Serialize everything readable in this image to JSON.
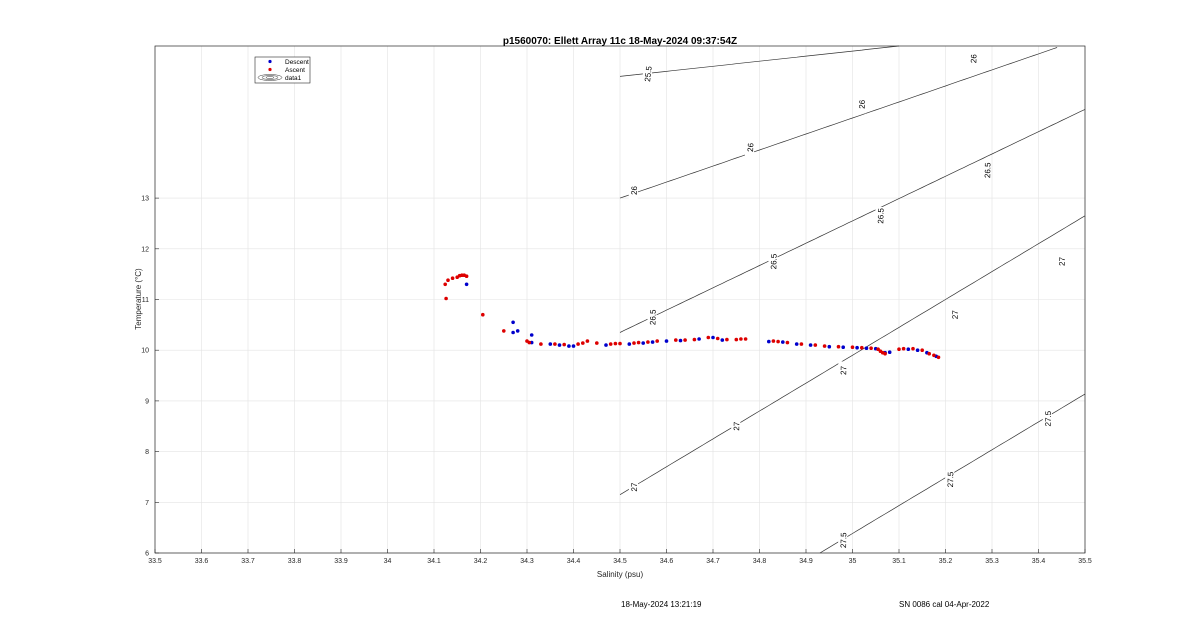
{
  "chart_data": {
    "type": "scatter",
    "title": "p1560070: Ellett Array 11c 18-May-2024 09:37:54Z",
    "xlabel": "Salinity (psu)",
    "ylabel": "Temperature (°C)",
    "xlim": [
      33.5,
      35.5
    ],
    "ylim": [
      6,
      16
    ],
    "xticks": [
      33.5,
      33.6,
      33.7,
      33.8,
      33.9,
      34,
      34.1,
      34.2,
      34.3,
      34.4,
      34.5,
      34.6,
      34.7,
      34.8,
      34.9,
      35,
      35.1,
      35.2,
      35.3,
      35.4,
      35.5
    ],
    "yticks": [
      6,
      7,
      8,
      9,
      10,
      11,
      12,
      13
    ],
    "grid": true,
    "legend_position": "top-left",
    "colors": {
      "descent": "#0000cc",
      "ascent": "#dd0000",
      "contour": "#333333",
      "grid": "#e3e3e3",
      "axis": "#262626"
    },
    "legend": [
      {
        "name": "Descent",
        "marker": "dot",
        "color": "#0000cc"
      },
      {
        "name": "Ascent",
        "marker": "dot",
        "color": "#dd0000"
      },
      {
        "name": "data1",
        "marker": "contour-ellipse",
        "color": "#333333"
      }
    ],
    "series": [
      {
        "name": "Descent",
        "points": [
          [
            34.17,
            11.3
          ],
          [
            34.27,
            10.55
          ],
          [
            34.27,
            10.35
          ],
          [
            34.28,
            10.38
          ],
          [
            34.31,
            10.3
          ],
          [
            34.31,
            10.15
          ],
          [
            34.35,
            10.12
          ],
          [
            34.37,
            10.1
          ],
          [
            34.39,
            10.08
          ],
          [
            34.4,
            10.08
          ],
          [
            34.47,
            10.1
          ],
          [
            34.52,
            10.12
          ],
          [
            34.55,
            10.14
          ],
          [
            34.57,
            10.16
          ],
          [
            34.6,
            10.18
          ],
          [
            34.63,
            10.19
          ],
          [
            34.67,
            10.22
          ],
          [
            34.7,
            10.25
          ],
          [
            34.72,
            10.2
          ],
          [
            34.82,
            10.17
          ],
          [
            34.85,
            10.16
          ],
          [
            34.88,
            10.12
          ],
          [
            34.91,
            10.1
          ],
          [
            34.95,
            10.07
          ],
          [
            34.98,
            10.06
          ],
          [
            35.01,
            10.05
          ],
          [
            35.03,
            10.04
          ],
          [
            35.05,
            10.03
          ],
          [
            35.07,
            9.95
          ],
          [
            35.08,
            9.96
          ],
          [
            35.12,
            10.02
          ],
          [
            35.14,
            10.0
          ],
          [
            35.16,
            9.95
          ],
          [
            35.18,
            9.88
          ]
        ]
      },
      {
        "name": "Ascent",
        "points": [
          [
            34.124,
            11.3
          ],
          [
            34.126,
            11.02
          ],
          [
            34.13,
            11.38
          ],
          [
            34.14,
            11.42
          ],
          [
            34.15,
            11.44
          ],
          [
            34.155,
            11.47
          ],
          [
            34.16,
            11.48
          ],
          [
            34.165,
            11.48
          ],
          [
            34.17,
            11.46
          ],
          [
            34.205,
            10.7
          ],
          [
            34.25,
            10.38
          ],
          [
            34.3,
            10.18
          ],
          [
            34.305,
            10.15
          ],
          [
            34.33,
            10.12
          ],
          [
            34.36,
            10.12
          ],
          [
            34.38,
            10.11
          ],
          [
            34.41,
            10.12
          ],
          [
            34.42,
            10.14
          ],
          [
            34.43,
            10.18
          ],
          [
            34.45,
            10.14
          ],
          [
            34.48,
            10.12
          ],
          [
            34.49,
            10.13
          ],
          [
            34.5,
            10.13
          ],
          [
            34.53,
            10.14
          ],
          [
            34.54,
            10.15
          ],
          [
            34.56,
            10.16
          ],
          [
            34.58,
            10.18
          ],
          [
            34.62,
            10.2
          ],
          [
            34.64,
            10.2
          ],
          [
            34.66,
            10.21
          ],
          [
            34.69,
            10.25
          ],
          [
            34.71,
            10.23
          ],
          [
            34.73,
            10.21
          ],
          [
            34.75,
            10.21
          ],
          [
            34.76,
            10.22
          ],
          [
            34.77,
            10.22
          ],
          [
            34.83,
            10.18
          ],
          [
            34.84,
            10.17
          ],
          [
            34.86,
            10.15
          ],
          [
            34.89,
            10.12
          ],
          [
            34.92,
            10.1
          ],
          [
            34.94,
            10.08
          ],
          [
            34.97,
            10.07
          ],
          [
            35.0,
            10.06
          ],
          [
            35.02,
            10.05
          ],
          [
            35.04,
            10.04
          ],
          [
            35.055,
            10.02
          ],
          [
            35.06,
            9.98
          ],
          [
            35.065,
            9.95
          ],
          [
            35.07,
            9.93
          ],
          [
            35.1,
            10.02
          ],
          [
            35.11,
            10.03
          ],
          [
            35.13,
            10.03
          ],
          [
            35.15,
            10.0
          ],
          [
            35.165,
            9.93
          ],
          [
            35.175,
            9.9
          ],
          [
            35.185,
            9.86
          ]
        ]
      }
    ],
    "isopycnals": [
      {
        "level": "25.5",
        "s0": 34.5,
        "t0": 15.4,
        "slope": 1.0,
        "labels": [
          {
            "text": "25.5",
            "s": 34.56,
            "t": 15.45
          }
        ]
      },
      {
        "level": "26",
        "s0": 34.5,
        "t0": 13.0,
        "slope": 3.16,
        "labels": [
          {
            "text": "26",
            "s": 34.53,
            "t": 13.15
          },
          {
            "text": "26",
            "s": 34.78,
            "t": 14.0
          },
          {
            "text": "26",
            "s": 35.02,
            "t": 14.85
          },
          {
            "text": "26",
            "s": 35.26,
            "t": 15.75
          }
        ]
      },
      {
        "level": "26.5",
        "s0": 34.5,
        "t0": 10.35,
        "slope": 4.4,
        "labels": [
          {
            "text": "26.5",
            "s": 34.57,
            "t": 10.65
          },
          {
            "text": "26.5",
            "s": 34.83,
            "t": 11.75
          },
          {
            "text": "26.5",
            "s": 35.06,
            "t": 12.65
          },
          {
            "text": "26.5",
            "s": 35.29,
            "t": 13.55
          }
        ]
      },
      {
        "level": "27",
        "s0": 34.5,
        "t0": 7.15,
        "slope": 5.5,
        "labels": [
          {
            "text": "27",
            "s": 34.53,
            "t": 7.3
          },
          {
            "text": "27",
            "s": 34.75,
            "t": 8.5
          },
          {
            "text": "27",
            "s": 34.98,
            "t": 9.6
          },
          {
            "text": "27",
            "s": 35.22,
            "t": 10.7
          },
          {
            "text": "27",
            "s": 35.45,
            "t": 11.75
          }
        ]
      },
      {
        "level": "27.5",
        "s0": 34.93,
        "t0": 6.0,
        "slope": 5.5,
        "labels": [
          {
            "text": "27.5",
            "s": 34.98,
            "t": 6.25
          },
          {
            "text": "27.5",
            "s": 35.21,
            "t": 7.45
          },
          {
            "text": "27.5",
            "s": 35.42,
            "t": 8.65
          }
        ]
      }
    ]
  },
  "footer": {
    "timestamp": "18-May-2024 13:21:19",
    "serial": "SN 0086 cal 04-Apr-2022"
  }
}
